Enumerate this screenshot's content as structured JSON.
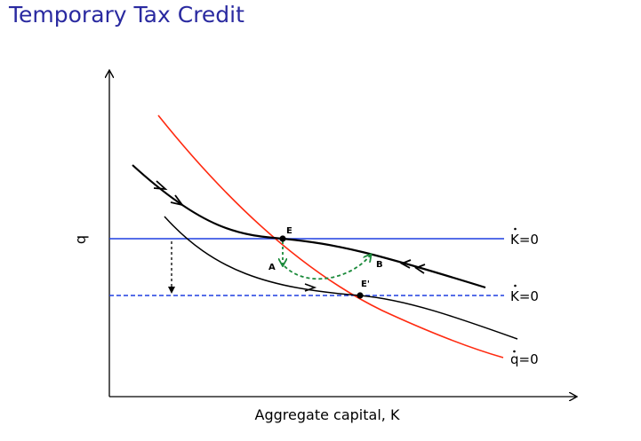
{
  "title": "Temporary Tax Credit",
  "axes": {
    "y_label": "q",
    "x_label": "Aggregate capital, K"
  },
  "line_labels": {
    "k_dot_old": "K=0",
    "k_dot_new": "K=0",
    "q_dot": "q=0"
  },
  "points": {
    "E": "E",
    "E_prime": "E'",
    "A": "A",
    "B": "B"
  },
  "colors": {
    "title": "#2a2aa0",
    "k_dot_line": "#1f3fe0",
    "q_dot_line": "#ff2a10",
    "adjustment_path": "#1a8a3a",
    "saddle_path": "#000000"
  }
}
